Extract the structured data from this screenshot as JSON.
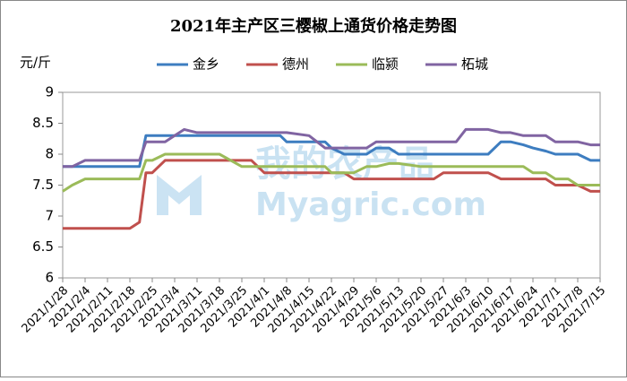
{
  "chart_data": {
    "type": "line",
    "title": "2021年主产区三樱椒上通货价格走势图",
    "y_label": "元/斤",
    "watermark": {
      "cn": "我的农产品",
      "en": "Myagric.com"
    },
    "x": [
      "2021/1/28",
      "2021/1/31",
      "2021/2/4",
      "2021/2/11",
      "2021/2/18",
      "2021/2/21",
      "2021/2/23",
      "2021/2/25",
      "2021/3/1",
      "2021/3/4",
      "2021/3/7",
      "2021/3/11",
      "2021/3/18",
      "2021/3/25",
      "2021/3/28",
      "2021/4/1",
      "2021/4/6",
      "2021/4/8",
      "2021/4/15",
      "2021/4/20",
      "2021/4/22",
      "2021/4/26",
      "2021/4/29",
      "2021/5/3",
      "2021/5/6",
      "2021/5/10",
      "2021/5/13",
      "2021/5/20",
      "2021/5/24",
      "2021/5/27",
      "2021/5/31",
      "2021/6/3",
      "2021/6/7",
      "2021/6/10",
      "2021/6/14",
      "2021/6/17",
      "2021/6/21",
      "2021/6/24",
      "2021/6/28",
      "2021/7/1",
      "2021/7/5",
      "2021/7/8",
      "2021/7/12",
      "2021/7/15"
    ],
    "xlim": [
      "2021/1/28",
      "2021/7/15"
    ],
    "xticks": [
      "2021/1/28",
      "2021/2/4",
      "2021/2/11",
      "2021/2/18",
      "2021/2/25",
      "2021/3/4",
      "2021/3/11",
      "2021/3/18",
      "2021/3/25",
      "2021/4/1",
      "2021/4/8",
      "2021/4/15",
      "2021/4/22",
      "2021/4/29",
      "2021/5/6",
      "2021/5/13",
      "2021/5/20",
      "2021/5/27",
      "2021/6/3",
      "2021/6/10",
      "2021/6/17",
      "2021/6/24",
      "2021/7/1",
      "2021/7/8",
      "2021/7/15"
    ],
    "ylim": [
      6,
      9
    ],
    "yticks": [
      6,
      6.5,
      7,
      7.5,
      8,
      8.5,
      9
    ],
    "series": [
      {
        "name": "金乡",
        "color": "#3d7dc0",
        "values": [
          7.8,
          7.8,
          7.8,
          7.8,
          7.8,
          7.8,
          8.3,
          8.3,
          8.3,
          8.3,
          8.3,
          8.3,
          8.3,
          8.3,
          8.3,
          8.3,
          8.3,
          8.2,
          8.2,
          8.2,
          8.1,
          8.0,
          8.0,
          8.0,
          8.1,
          8.1,
          8.0,
          8.0,
          8.0,
          8.0,
          8.0,
          8.0,
          8.0,
          8.0,
          8.2,
          8.2,
          8.15,
          8.1,
          8.05,
          8.0,
          8.0,
          8.0,
          7.9,
          7.9
        ]
      },
      {
        "name": "德州",
        "color": "#c0504d",
        "values": [
          6.8,
          6.8,
          6.8,
          6.8,
          6.8,
          6.9,
          7.7,
          7.7,
          7.9,
          7.9,
          7.9,
          7.9,
          7.9,
          7.9,
          7.9,
          7.7,
          7.7,
          7.7,
          7.7,
          7.7,
          7.7,
          7.7,
          7.6,
          7.6,
          7.6,
          7.6,
          7.6,
          7.6,
          7.6,
          7.7,
          7.7,
          7.7,
          7.7,
          7.7,
          7.6,
          7.6,
          7.6,
          7.6,
          7.6,
          7.5,
          7.5,
          7.5,
          7.4,
          7.4
        ]
      },
      {
        "name": "临颍",
        "color": "#9bbb59",
        "values": [
          7.4,
          7.5,
          7.6,
          7.6,
          7.6,
          7.6,
          7.9,
          7.9,
          8.0,
          8.0,
          8.0,
          8.0,
          8.0,
          7.8,
          7.8,
          7.8,
          7.8,
          7.8,
          7.8,
          7.8,
          7.7,
          7.7,
          7.7,
          7.8,
          7.8,
          7.85,
          7.85,
          7.8,
          7.8,
          7.8,
          7.8,
          7.8,
          7.8,
          7.8,
          7.8,
          7.8,
          7.8,
          7.7,
          7.7,
          7.6,
          7.6,
          7.5,
          7.5,
          7.5
        ]
      },
      {
        "name": "柘城",
        "color": "#8064a2",
        "values": [
          7.8,
          7.8,
          7.9,
          7.9,
          7.9,
          7.9,
          8.2,
          8.2,
          8.2,
          8.3,
          8.4,
          8.35,
          8.35,
          8.35,
          8.35,
          8.35,
          8.35,
          8.35,
          8.3,
          8.1,
          8.1,
          8.1,
          8.1,
          8.1,
          8.2,
          8.2,
          8.2,
          8.2,
          8.2,
          8.2,
          8.2,
          8.4,
          8.4,
          8.4,
          8.35,
          8.35,
          8.3,
          8.3,
          8.3,
          8.2,
          8.2,
          8.2,
          8.15,
          8.15
        ]
      }
    ]
  }
}
